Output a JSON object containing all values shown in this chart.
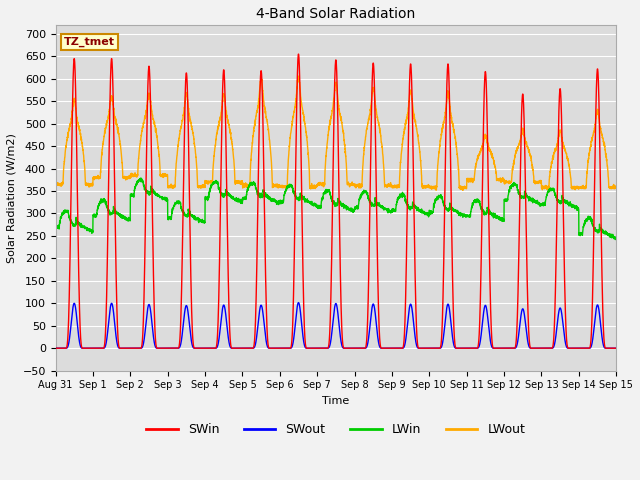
{
  "title": "4-Band Solar Radiation",
  "xlabel": "Time",
  "ylabel": "Solar Radiation (W/m2)",
  "ylim": [
    -50,
    720
  ],
  "bg_color": "#dcdcdc",
  "legend_label": "TZ_tmet",
  "series": {
    "SWin": {
      "color": "#ff0000",
      "lw": 1.0
    },
    "SWout": {
      "color": "#0000ff",
      "lw": 1.0
    },
    "LWin": {
      "color": "#00cc00",
      "lw": 1.0
    },
    "LWout": {
      "color": "#ffaa00",
      "lw": 1.0
    }
  },
  "n_days": 15,
  "tick_labels": [
    "Aug 31",
    "Sep 1",
    "Sep 2",
    "Sep 3",
    "Sep 4",
    "Sep 5",
    "Sep 6",
    "Sep 7",
    "Sep 8",
    "Sep 9",
    "Sep 10",
    "Sep 11",
    "Sep 12",
    "Sep 13",
    "Sep 14",
    "Sep 15"
  ],
  "peaks_swin": [
    645,
    645,
    628,
    613,
    620,
    618,
    655,
    642,
    635,
    633,
    633,
    616,
    566,
    578,
    622
  ],
  "lwin_day_base": [
    285,
    310,
    355,
    305,
    350,
    348,
    342,
    330,
    328,
    322,
    318,
    310,
    345,
    335,
    270
  ],
  "lwout_day_peaks": [
    510,
    520,
    525,
    520,
    520,
    545,
    548,
    538,
    530,
    525,
    520,
    450,
    460,
    455,
    490
  ],
  "lwout_night_base": [
    365,
    380,
    385,
    360,
    370,
    362,
    360,
    365,
    362,
    360,
    358,
    375,
    370,
    358,
    358
  ]
}
